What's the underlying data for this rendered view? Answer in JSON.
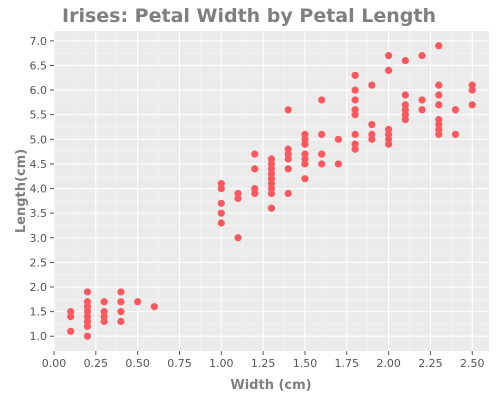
{
  "chart_data": {
    "type": "scatter",
    "title": "Irises: Petal Width by Petal Length",
    "xlabel": "Width (cm)",
    "ylabel": "Length(cm)",
    "xlim": [
      0.0,
      2.6
    ],
    "ylim": [
      0.7,
      7.2
    ],
    "xticks": [
      0.0,
      0.25,
      0.5,
      0.75,
      1.0,
      1.25,
      1.5,
      1.75,
      2.0,
      2.25,
      2.5
    ],
    "xtick_labels": [
      "0.00",
      "0.25",
      "0.50",
      "0.75",
      "1.00",
      "1.25",
      "1.50",
      "1.75",
      "2.00",
      "2.25",
      "2.50"
    ],
    "yticks": [
      1.0,
      1.5,
      2.0,
      2.5,
      3.0,
      3.5,
      4.0,
      4.5,
      5.0,
      5.5,
      6.0,
      6.5,
      7.0
    ],
    "ytick_labels": [
      "1.0",
      "1.5",
      "2.0",
      "2.5",
      "3.0",
      "3.5",
      "4.0",
      "4.5",
      "5.0",
      "5.5",
      "6.0",
      "6.5",
      "7.0"
    ],
    "grid": true,
    "background_color": "#ebebeb",
    "point_color": "#f8585e",
    "points": [
      [
        0.1,
        1.1
      ],
      [
        0.1,
        1.4
      ],
      [
        0.1,
        1.5
      ],
      [
        0.2,
        1.0
      ],
      [
        0.2,
        1.2
      ],
      [
        0.2,
        1.3
      ],
      [
        0.2,
        1.4
      ],
      [
        0.2,
        1.5
      ],
      [
        0.2,
        1.6
      ],
      [
        0.2,
        1.7
      ],
      [
        0.2,
        1.9
      ],
      [
        0.3,
        1.3
      ],
      [
        0.3,
        1.4
      ],
      [
        0.3,
        1.5
      ],
      [
        0.3,
        1.7
      ],
      [
        0.4,
        1.3
      ],
      [
        0.4,
        1.5
      ],
      [
        0.4,
        1.7
      ],
      [
        0.4,
        1.9
      ],
      [
        0.5,
        1.7
      ],
      [
        0.6,
        1.6
      ],
      [
        1.0,
        3.3
      ],
      [
        1.0,
        3.5
      ],
      [
        1.0,
        3.7
      ],
      [
        1.0,
        4.0
      ],
      [
        1.0,
        4.1
      ],
      [
        1.1,
        3.0
      ],
      [
        1.1,
        3.8
      ],
      [
        1.1,
        3.9
      ],
      [
        1.2,
        3.9
      ],
      [
        1.2,
        4.0
      ],
      [
        1.2,
        4.4
      ],
      [
        1.2,
        4.7
      ],
      [
        1.3,
        3.6
      ],
      [
        1.3,
        3.9
      ],
      [
        1.3,
        4.0
      ],
      [
        1.3,
        4.1
      ],
      [
        1.3,
        4.2
      ],
      [
        1.3,
        4.3
      ],
      [
        1.3,
        4.4
      ],
      [
        1.3,
        4.5
      ],
      [
        1.3,
        4.6
      ],
      [
        1.4,
        3.9
      ],
      [
        1.4,
        4.4
      ],
      [
        1.4,
        4.6
      ],
      [
        1.4,
        4.7
      ],
      [
        1.4,
        4.8
      ],
      [
        1.4,
        5.6
      ],
      [
        1.5,
        4.2
      ],
      [
        1.5,
        4.5
      ],
      [
        1.5,
        4.6
      ],
      [
        1.5,
        4.7
      ],
      [
        1.5,
        4.9
      ],
      [
        1.5,
        5.0
      ],
      [
        1.5,
        5.1
      ],
      [
        1.6,
        4.5
      ],
      [
        1.6,
        4.7
      ],
      [
        1.6,
        5.1
      ],
      [
        1.6,
        5.8
      ],
      [
        1.7,
        4.5
      ],
      [
        1.7,
        5.0
      ],
      [
        1.8,
        4.8
      ],
      [
        1.8,
        4.9
      ],
      [
        1.8,
        5.1
      ],
      [
        1.8,
        5.5
      ],
      [
        1.8,
        5.6
      ],
      [
        1.8,
        5.8
      ],
      [
        1.8,
        6.0
      ],
      [
        1.8,
        6.3
      ],
      [
        1.9,
        5.0
      ],
      [
        1.9,
        5.1
      ],
      [
        1.9,
        5.3
      ],
      [
        1.9,
        6.1
      ],
      [
        2.0,
        4.9
      ],
      [
        2.0,
        5.0
      ],
      [
        2.0,
        5.1
      ],
      [
        2.0,
        5.2
      ],
      [
        2.0,
        6.4
      ],
      [
        2.0,
        6.7
      ],
      [
        2.1,
        5.4
      ],
      [
        2.1,
        5.5
      ],
      [
        2.1,
        5.6
      ],
      [
        2.1,
        5.7
      ],
      [
        2.1,
        5.9
      ],
      [
        2.1,
        6.6
      ],
      [
        2.2,
        5.6
      ],
      [
        2.2,
        5.8
      ],
      [
        2.2,
        6.7
      ],
      [
        2.3,
        5.1
      ],
      [
        2.3,
        5.2
      ],
      [
        2.3,
        5.3
      ],
      [
        2.3,
        5.4
      ],
      [
        2.3,
        5.7
      ],
      [
        2.3,
        5.9
      ],
      [
        2.3,
        6.1
      ],
      [
        2.3,
        6.9
      ],
      [
        2.4,
        5.1
      ],
      [
        2.4,
        5.6
      ],
      [
        2.5,
        5.7
      ],
      [
        2.5,
        6.0
      ],
      [
        2.5,
        6.1
      ]
    ]
  }
}
